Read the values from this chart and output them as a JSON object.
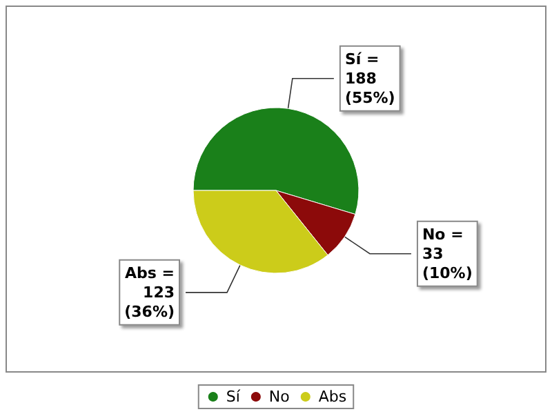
{
  "chart_data": {
    "type": "pie",
    "categories": [
      "Sí",
      "No",
      "Abs"
    ],
    "values": [
      188,
      33,
      123
    ],
    "colors": [
      "#1a801a",
      "#8c0a0a",
      "#cccc1a"
    ],
    "value_labels": [
      "Sí =\n188\n(55%)",
      "No =\n33\n(10%)",
      "Abs =\n123\n(36%)"
    ],
    "legend": "bottom"
  }
}
